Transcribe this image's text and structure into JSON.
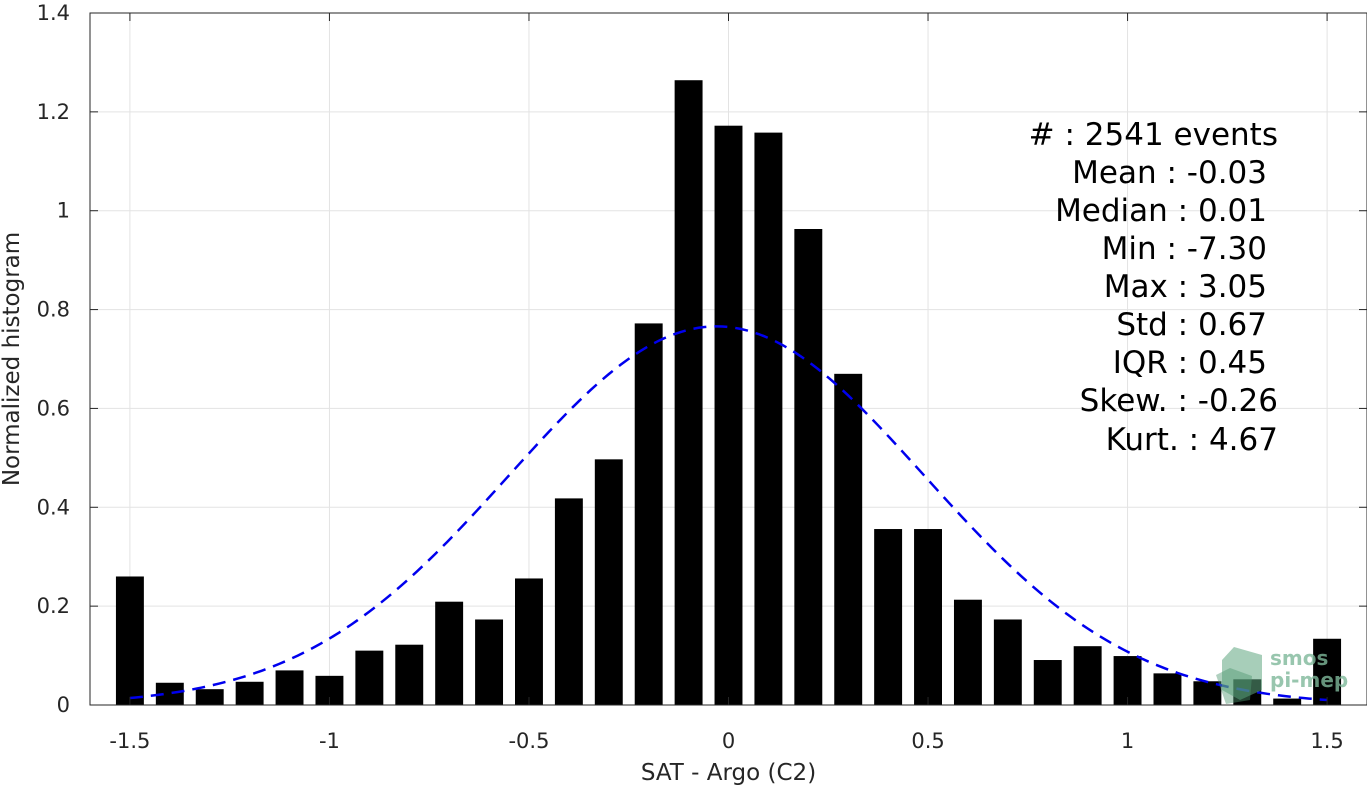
{
  "chart_data": {
    "type": "bar",
    "xlabel": "SAT - Argo (C2)",
    "ylabel": "Normalized histogram",
    "xlim": [
      -1.6,
      1.6
    ],
    "ylim": [
      0,
      1.4
    ],
    "grid": true,
    "x_ticks": [
      -1.5,
      -1,
      -0.5,
      0,
      0.5,
      1,
      1.5
    ],
    "x_tick_labels": [
      "-1.5",
      "-1",
      "-0.5",
      "0",
      "0.5",
      "1",
      "1.5"
    ],
    "y_ticks": [
      0,
      0.2,
      0.4,
      0.6,
      0.8,
      1,
      1.2,
      1.4
    ],
    "y_tick_labels": [
      "0",
      "0.2",
      "0.4",
      "0.6",
      "0.8",
      "1",
      "1.2",
      "1.4"
    ],
    "bar_color": "#000000",
    "fit_color": "#0000ee",
    "x": [
      -1.5,
      -1.4,
      -1.3,
      -1.2,
      -1.1,
      -1.0,
      -0.9,
      -0.8,
      -0.7,
      -0.6,
      -0.5,
      -0.4,
      -0.3,
      -0.2,
      -0.1,
      0.0,
      0.1,
      0.2,
      0.3,
      0.4,
      0.5,
      0.6,
      0.7,
      0.8,
      0.9,
      1.0,
      1.1,
      1.2,
      1.3,
      1.4,
      1.5
    ],
    "values": [
      0.26,
      0.045,
      0.032,
      0.047,
      0.07,
      0.059,
      0.11,
      0.122,
      0.209,
      0.173,
      0.256,
      0.418,
      0.497,
      0.772,
      1.264,
      1.172,
      1.158,
      0.963,
      0.67,
      0.356,
      0.356,
      0.213,
      0.173,
      0.091,
      0.119,
      0.099,
      0.064,
      0.048,
      0.052,
      0.013,
      0.134
    ],
    "fit": {
      "type": "gaussian",
      "mean": -0.03,
      "std": 0.52,
      "peak": 0.766,
      "x_range": [
        -1.5,
        1.5
      ]
    },
    "stats_lines": [
      "#  : 2541 events",
      "Mean : -0.03",
      "Median : 0.01",
      "Min : -7.30",
      "Max : 3.05",
      "Std : 0.67",
      "IQR : 0.45",
      "Skew. : -0.26",
      "Kurt. : 4.67"
    ]
  },
  "logo": {
    "line1": "smos",
    "line2": "pi-mep"
  }
}
